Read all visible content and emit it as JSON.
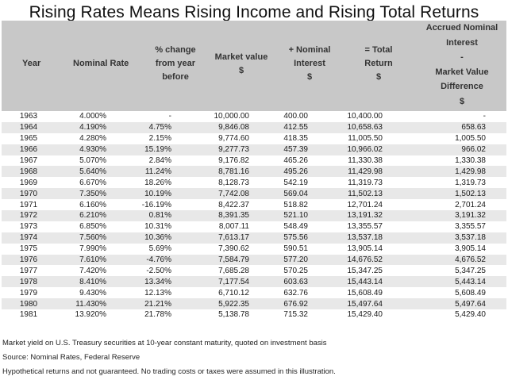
{
  "title": "Rising Rates Means Rising Income and Rising Total Returns",
  "headers": {
    "year": "Year",
    "rate": "Nominal Rate",
    "pct1": "% change",
    "pct2": "from year",
    "pct3": "before",
    "mv1": "Market value",
    "mv2": "$",
    "ni1": "+ Nominal",
    "ni2": "Interest",
    "ni3": "$",
    "tr1": "= Total",
    "tr2": "Return",
    "tr3": "$",
    "ac1": "Accrued Nominal",
    "ac2": "Interest",
    "ac3": "-",
    "ac4": "Market Value",
    "ac5": "Difference",
    "ac6": "$"
  },
  "rows": [
    {
      "year": "1963",
      "rate": "4.000%",
      "pct": "-",
      "mv": "10,000.00",
      "ni": "400.00",
      "tr": "10,400.00",
      "ac": "-"
    },
    {
      "year": "1964",
      "rate": "4.190%",
      "pct": "4.75%",
      "mv": "9,846.08",
      "ni": "412.55",
      "tr": "10,658.63",
      "ac": "658.63"
    },
    {
      "year": "1965",
      "rate": "4.280%",
      "pct": "2.15%",
      "mv": "9,774.60",
      "ni": "418.35",
      "tr": "11,005.50",
      "ac": "1,005.50"
    },
    {
      "year": "1966",
      "rate": "4.930%",
      "pct": "15.19%",
      "mv": "9,277.73",
      "ni": "457.39",
      "tr": "10,966.02",
      "ac": "966.02"
    },
    {
      "year": "1967",
      "rate": "5.070%",
      "pct": "2.84%",
      "mv": "9,176.82",
      "ni": "465.26",
      "tr": "11,330.38",
      "ac": "1,330.38"
    },
    {
      "year": "1968",
      "rate": "5.640%",
      "pct": "11.24%",
      "mv": "8,781.16",
      "ni": "495.26",
      "tr": "11,429.98",
      "ac": "1,429.98"
    },
    {
      "year": "1969",
      "rate": "6.670%",
      "pct": "18.26%",
      "mv": "8,128.73",
      "ni": "542.19",
      "tr": "11,319.73",
      "ac": "1,319.73"
    },
    {
      "year": "1970",
      "rate": "7.350%",
      "pct": "10.19%",
      "mv": "7,742.08",
      "ni": "569.04",
      "tr": "11,502.13",
      "ac": "1,502.13"
    },
    {
      "year": "1971",
      "rate": "6.160%",
      "pct": "-16.19%",
      "mv": "8,422.37",
      "ni": "518.82",
      "tr": "12,701.24",
      "ac": "2,701.24"
    },
    {
      "year": "1972",
      "rate": "6.210%",
      "pct": "0.81%",
      "mv": "8,391.35",
      "ni": "521.10",
      "tr": "13,191.32",
      "ac": "3,191.32"
    },
    {
      "year": "1973",
      "rate": "6.850%",
      "pct": "10.31%",
      "mv": "8,007.11",
      "ni": "548.49",
      "tr": "13,355.57",
      "ac": "3,355.57"
    },
    {
      "year": "1974",
      "rate": "7.560%",
      "pct": "10.36%",
      "mv": "7,613.17",
      "ni": "575.56",
      "tr": "13,537.18",
      "ac": "3,537.18"
    },
    {
      "year": "1975",
      "rate": "7.990%",
      "pct": "5.69%",
      "mv": "7,390.62",
      "ni": "590.51",
      "tr": "13,905.14",
      "ac": "3,905.14"
    },
    {
      "year": "1976",
      "rate": "7.610%",
      "pct": "-4.76%",
      "mv": "7,584.79",
      "ni": "577.20",
      "tr": "14,676.52",
      "ac": "4,676.52"
    },
    {
      "year": "1977",
      "rate": "7.420%",
      "pct": "-2.50%",
      "mv": "7,685.28",
      "ni": "570.25",
      "tr": "15,347.25",
      "ac": "5,347.25"
    },
    {
      "year": "1978",
      "rate": "8.410%",
      "pct": "13.34%",
      "mv": "7,177.54",
      "ni": "603.63",
      "tr": "15,443.14",
      "ac": "5,443.14"
    },
    {
      "year": "1979",
      "rate": "9.430%",
      "pct": "12.13%",
      "mv": "6,710.12",
      "ni": "632.76",
      "tr": "15,608.49",
      "ac": "5,608.49"
    },
    {
      "year": "1980",
      "rate": "11.430%",
      "pct": "21.21%",
      "mv": "5,922.35",
      "ni": "676.92",
      "tr": "15,497.64",
      "ac": "5,497.64"
    },
    {
      "year": "1981",
      "rate": "13.920%",
      "pct": "21.78%",
      "mv": "5,138.78",
      "ni": "715.32",
      "tr": "15,429.40",
      "ac": "5,429.40"
    }
  ],
  "notes": [
    "Market yield on U.S. Treasury securities at 10-year constant maturity, quoted on investment basis",
    "Source: Nominal Rates, Federal Reserve",
    "Hypothetical returns and not guaranteed. No trading costs or taxes were assumed in this illustration."
  ]
}
